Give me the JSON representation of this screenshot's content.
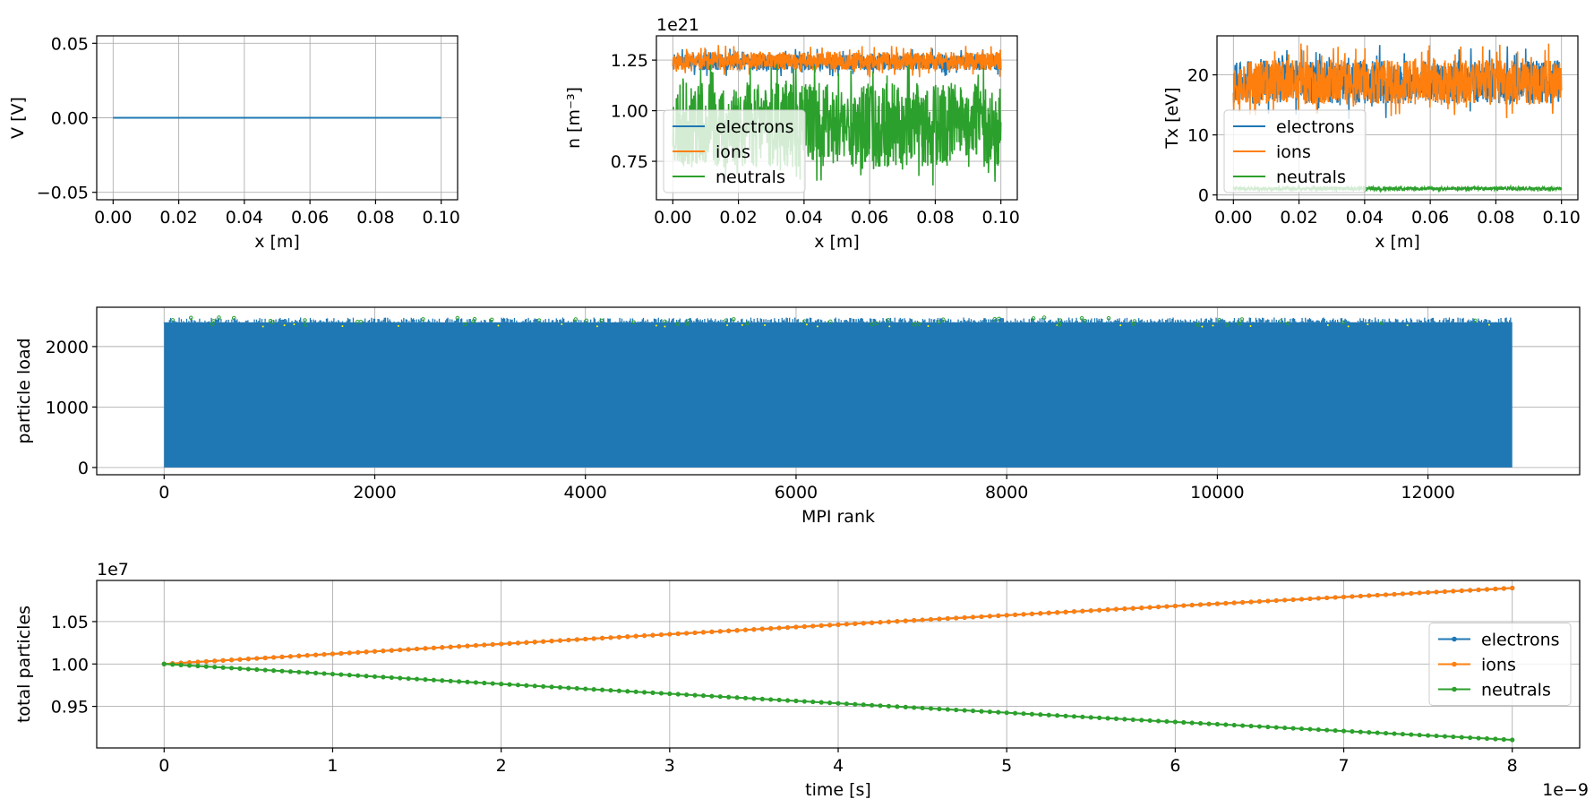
{
  "colors": {
    "electrons": "#1f77b4",
    "ions": "#ff7f0e",
    "neutrals": "#2ca02c",
    "grid": "#b0b0b0",
    "axis": "#000000"
  },
  "chart_data": [
    {
      "id": "potential",
      "type": "line",
      "xlabel": "x [m]",
      "ylabel": "V [V]",
      "xlim": [
        -0.005,
        0.105
      ],
      "ylim": [
        -0.055,
        0.055
      ],
      "xticks": [
        0.0,
        0.02,
        0.04,
        0.06,
        0.08,
        0.1
      ],
      "xticklabels": [
        "0.00",
        "0.02",
        "0.04",
        "0.06",
        "0.08",
        "0.10"
      ],
      "yticks": [
        -0.05,
        0.0,
        0.05
      ],
      "yticklabels": [
        "−0.05",
        "0.00",
        "0.05"
      ],
      "grid": true,
      "series": [
        {
          "name": "V",
          "color": "#1f77b4",
          "x": [
            0.0,
            0.1
          ],
          "y": [
            0.0,
            0.0
          ]
        }
      ]
    },
    {
      "id": "density",
      "type": "line",
      "xlabel": "x [m]",
      "ylabel": "n [m⁻³]",
      "offset_text": "1e21",
      "xlim": [
        -0.005,
        0.105
      ],
      "ylim": [
        0.56,
        1.37
      ],
      "xticks": [
        0.0,
        0.02,
        0.04,
        0.06,
        0.08,
        0.1
      ],
      "xticklabels": [
        "0.00",
        "0.02",
        "0.04",
        "0.06",
        "0.08",
        "0.10"
      ],
      "yticks": [
        0.75,
        1.0,
        1.25
      ],
      "yticklabels": [
        "0.75",
        "1.00",
        "1.25"
      ],
      "grid": true,
      "legend": {
        "placement": "lower-left",
        "entries": [
          "electrons",
          "ions",
          "neutrals"
        ]
      },
      "noise_series": [
        {
          "name": "electrons",
          "color": "#1f77b4",
          "x_range": [
            0.0,
            0.1
          ],
          "mean": 1.24,
          "half_width": 0.04,
          "spikes": 0.07,
          "seed": 7
        },
        {
          "name": "ions",
          "color": "#ff7f0e",
          "x_range": [
            0.0,
            0.1
          ],
          "mean": 1.245,
          "half_width": 0.045,
          "spikes": 0.08,
          "seed": 11
        },
        {
          "name": "neutrals",
          "color": "#2ca02c",
          "x_range": [
            0.0,
            0.1
          ],
          "mean": 0.93,
          "half_width": 0.21,
          "spikes": 0.3,
          "seed": 23
        }
      ]
    },
    {
      "id": "temperature",
      "type": "line",
      "xlabel": "x [m]",
      "ylabel": "Tx [eV]",
      "xlim": [
        -0.005,
        0.105
      ],
      "ylim": [
        -0.8,
        26.5
      ],
      "xticks": [
        0.0,
        0.02,
        0.04,
        0.06,
        0.08,
        0.1
      ],
      "xticklabels": [
        "0.00",
        "0.02",
        "0.04",
        "0.06",
        "0.08",
        "0.10"
      ],
      "yticks": [
        0,
        10,
        20
      ],
      "yticklabels": [
        "0",
        "10",
        "20"
      ],
      "grid": true,
      "legend": {
        "placement": "lower-left",
        "entries": [
          "electrons",
          "ions",
          "neutrals"
        ]
      },
      "noise_series": [
        {
          "name": "electrons",
          "color": "#1f77b4",
          "x_range": [
            0.0,
            0.1
          ],
          "mean": 18.8,
          "half_width": 3.6,
          "spikes": 6.2,
          "seed": 31
        },
        {
          "name": "ions",
          "color": "#ff7f0e",
          "x_range": [
            0.0,
            0.1
          ],
          "mean": 18.8,
          "half_width": 3.8,
          "spikes": 6.5,
          "seed": 37
        },
        {
          "name": "neutrals",
          "color": "#2ca02c",
          "x_range": [
            0.0,
            0.1
          ],
          "mean": 1.05,
          "half_width": 0.25,
          "spikes": 0.35,
          "seed": 41
        }
      ]
    },
    {
      "id": "particle_load",
      "type": "bar",
      "xlabel": "MPI rank",
      "ylabel": "particle load",
      "xlim": [
        -640,
        13440
      ],
      "ylim": [
        -120,
        2650
      ],
      "xticks": [
        0,
        2000,
        4000,
        6000,
        8000,
        10000,
        12000
      ],
      "xticklabels": [
        "0",
        "2000",
        "4000",
        "6000",
        "8000",
        "10000",
        "12000"
      ],
      "yticks": [
        0,
        1000,
        2000
      ],
      "yticklabels": [
        "0",
        "1000",
        "2000"
      ],
      "grid": true,
      "ranks": [
        0,
        12800
      ],
      "load_mean": 2400,
      "load_top_range": [
        2360,
        2480
      ],
      "colors": [
        "#1f77b4",
        "#2ca02c",
        "#ffff00"
      ]
    },
    {
      "id": "total_particles",
      "type": "line",
      "xlabel": "time [s]",
      "ylabel": "total particles",
      "offset_text": "1e7",
      "x_offset_text": "1e−9",
      "xlim": [
        -0.4,
        8.4
      ],
      "ylim": [
        0.901,
        1.0985
      ],
      "xticks": [
        0,
        1,
        2,
        3,
        4,
        5,
        6,
        7,
        8
      ],
      "xticklabels": [
        "0",
        "1",
        "2",
        "3",
        "4",
        "5",
        "6",
        "7",
        "8"
      ],
      "yticks": [
        0.95,
        1.0,
        1.05
      ],
      "yticklabels": [
        "0.95",
        "1.00",
        "1.05"
      ],
      "grid": true,
      "legend": {
        "placement": "right",
        "entries": [
          "electrons",
          "ions",
          "neutrals"
        ]
      },
      "trend_series": [
        {
          "name": "electrons",
          "color": "#1f77b4",
          "t_range": [
            0,
            8
          ],
          "points": 161,
          "start": 1.0,
          "end": 1.0895,
          "curvature": 0.0065
        },
        {
          "name": "ions",
          "color": "#ff7f0e",
          "t_range": [
            0,
            8
          ],
          "points": 161,
          "start": 1.0,
          "end": 1.0895,
          "curvature": 0.0065
        },
        {
          "name": "neutrals",
          "color": "#2ca02c",
          "t_range": [
            0,
            8
          ],
          "points": 161,
          "start": 1.0,
          "end": 0.9105,
          "curvature": -0.0065
        }
      ]
    }
  ]
}
